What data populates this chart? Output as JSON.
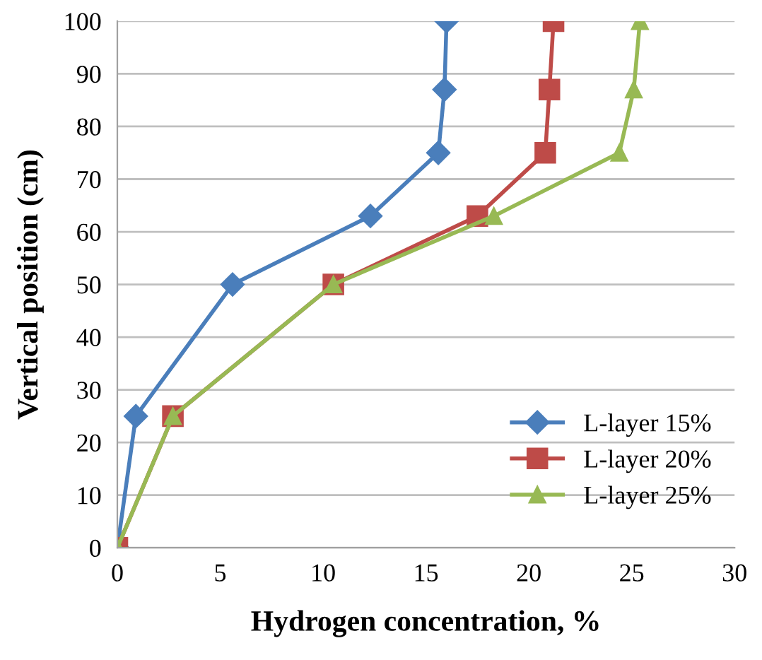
{
  "chart_data": {
    "type": "line",
    "xlabel": "Hydrogen concentration, %",
    "ylabel": "Vertical position (cm)",
    "xlim": [
      0,
      30
    ],
    "xticks": [
      0,
      5,
      10,
      15,
      20,
      25,
      30
    ],
    "ylim": [
      0,
      100
    ],
    "yticks": [
      0,
      10,
      20,
      30,
      40,
      50,
      60,
      70,
      80,
      90,
      100
    ],
    "grid": "y",
    "legend": "bottom right",
    "series": [
      {
        "name": "L-layer 15%",
        "color": "#4a7ebb",
        "marker": "diamond",
        "x": [
          0,
          0.9,
          5.6,
          12.3,
          15.6,
          15.9,
          16.0
        ],
        "values": [
          0,
          25,
          50,
          63,
          75,
          87,
          100
        ]
      },
      {
        "name": "L-layer 20%",
        "color": "#be4b48",
        "marker": "square",
        "x": [
          0,
          2.7,
          10.5,
          17.5,
          20.8,
          21.0,
          21.2
        ],
        "values": [
          0,
          25,
          50,
          63,
          75,
          87,
          100
        ]
      },
      {
        "name": "L-layer 25%",
        "color": "#98b954",
        "marker": "triangle",
        "x": [
          0,
          2.7,
          10.5,
          18.3,
          24.4,
          25.1,
          25.4
        ],
        "values": [
          0,
          25,
          50,
          63,
          75,
          87,
          100
        ]
      }
    ]
  }
}
